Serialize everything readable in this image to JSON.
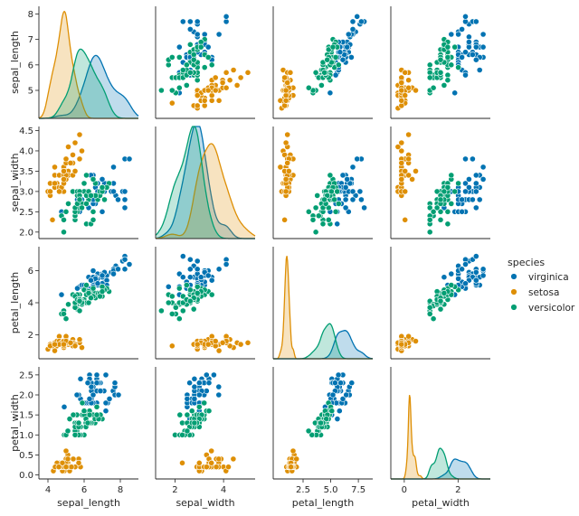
{
  "chart_data": {
    "type": "scatter",
    "subtype": "pairplot",
    "title": "",
    "variables": [
      "sepal_length",
      "sepal_width",
      "petal_length",
      "petal_width"
    ],
    "axis_limits": {
      "sepal_length": [
        3.9,
        8.3
      ],
      "sepal_width": [
        1.84,
        4.6
      ],
      "petal_length": [
        0.5,
        7.5
      ],
      "petal_width": [
        -0.1,
        2.7
      ]
    },
    "axis_ticks": {
      "sepal_length": [
        5,
        6,
        7,
        8
      ],
      "sepal_width": [
        2.0,
        2.5,
        3.0,
        3.5,
        4.0,
        4.5
      ],
      "petal_length": [
        2,
        4,
        6
      ],
      "petal_width": [
        0.0,
        0.5,
        1.0,
        1.5,
        2.0,
        2.5
      ]
    },
    "bottom_axis_ticks": {
      "sepal_length": [
        4,
        6,
        8
      ],
      "sepal_width": [
        2,
        4
      ],
      "petal_length": [
        2.5,
        5.0,
        7.5
      ],
      "petal_width": [
        0,
        2
      ]
    },
    "bottom_axis_limits": {
      "sepal_length": [
        3.5,
        9.0
      ],
      "sepal_width": [
        1.2,
        5.3
      ],
      "petal_length": [
        -0.2,
        8.8
      ],
      "petal_width": [
        -0.5,
        3.2
      ]
    },
    "tick_labels": {
      "sepal_length": [
        "5",
        "6",
        "7",
        "8"
      ],
      "sepal_width": [
        "2.0",
        "2.5",
        "3.0",
        "3.5",
        "4.0",
        "4.5"
      ],
      "petal_length": [
        "2",
        "4",
        "6"
      ],
      "petal_width": [
        "0.0",
        "0.5",
        "1.0",
        "1.5",
        "2.0",
        "2.5"
      ]
    },
    "bottom_tick_labels": {
      "sepal_length": [
        "4",
        "6",
        "8"
      ],
      "sepal_width": [
        "2",
        "4"
      ],
      "petal_length": [
        "2.5",
        "5.0",
        "7.5"
      ],
      "petal_width": [
        "0",
        "2"
      ]
    },
    "diag_density_max": [
      1.15,
      1.2,
      2.55,
      6.8
    ],
    "legend": {
      "title": "species",
      "placement": "center-right",
      "entries": [
        "virginica",
        "setosa",
        "versicolor"
      ]
    },
    "series": [
      {
        "name": "virginica",
        "color": "#0173b2",
        "points": [
          [
            6.3,
            3.3,
            6.0,
            2.5
          ],
          [
            5.8,
            2.7,
            5.1,
            1.9
          ],
          [
            7.1,
            3.0,
            5.9,
            2.1
          ],
          [
            6.3,
            2.9,
            5.6,
            1.8
          ],
          [
            6.5,
            3.0,
            5.8,
            2.2
          ],
          [
            7.6,
            3.0,
            6.6,
            2.1
          ],
          [
            4.9,
            2.5,
            4.5,
            1.7
          ],
          [
            7.3,
            2.9,
            6.3,
            1.8
          ],
          [
            6.7,
            2.5,
            5.8,
            1.8
          ],
          [
            7.2,
            3.6,
            6.1,
            2.5
          ],
          [
            6.5,
            3.2,
            5.1,
            2.0
          ],
          [
            6.4,
            2.7,
            5.3,
            1.9
          ],
          [
            6.8,
            3.0,
            5.5,
            2.1
          ],
          [
            5.7,
            2.5,
            5.0,
            2.0
          ],
          [
            5.8,
            2.8,
            5.1,
            2.4
          ],
          [
            6.4,
            3.2,
            5.3,
            2.3
          ],
          [
            6.5,
            3.0,
            5.5,
            1.8
          ],
          [
            7.7,
            3.8,
            6.7,
            2.2
          ],
          [
            7.7,
            2.6,
            6.9,
            2.3
          ],
          [
            6.0,
            2.2,
            5.0,
            1.5
          ],
          [
            6.9,
            3.2,
            5.7,
            2.3
          ],
          [
            5.6,
            2.8,
            4.9,
            2.0
          ],
          [
            7.7,
            2.8,
            6.7,
            2.0
          ],
          [
            6.3,
            2.7,
            4.9,
            1.8
          ],
          [
            6.7,
            3.3,
            5.7,
            2.1
          ],
          [
            7.2,
            3.2,
            6.0,
            1.8
          ],
          [
            6.2,
            2.8,
            4.8,
            1.8
          ],
          [
            6.1,
            3.0,
            4.9,
            1.8
          ],
          [
            6.4,
            2.8,
            5.6,
            2.1
          ],
          [
            7.2,
            3.0,
            5.8,
            1.6
          ],
          [
            7.4,
            2.8,
            6.1,
            1.9
          ],
          [
            7.9,
            3.8,
            6.4,
            2.0
          ],
          [
            6.4,
            2.8,
            5.6,
            2.2
          ],
          [
            6.3,
            2.8,
            5.1,
            1.5
          ],
          [
            6.1,
            2.6,
            5.6,
            1.4
          ],
          [
            7.7,
            3.0,
            6.1,
            2.3
          ],
          [
            6.3,
            3.4,
            5.6,
            2.4
          ],
          [
            6.4,
            3.1,
            5.5,
            1.8
          ],
          [
            6.0,
            3.0,
            4.8,
            1.8
          ],
          [
            6.9,
            3.1,
            5.4,
            2.1
          ],
          [
            6.7,
            3.1,
            5.6,
            2.4
          ],
          [
            6.9,
            3.1,
            5.1,
            2.3
          ],
          [
            6.8,
            3.2,
            5.9,
            2.3
          ],
          [
            6.7,
            3.3,
            5.7,
            2.5
          ],
          [
            6.7,
            3.0,
            5.2,
            2.3
          ],
          [
            6.3,
            2.5,
            5.0,
            1.9
          ],
          [
            6.5,
            3.0,
            5.2,
            2.0
          ],
          [
            6.2,
            3.4,
            5.4,
            2.3
          ],
          [
            5.9,
            3.0,
            5.1,
            1.8
          ]
        ]
      },
      {
        "name": "setosa",
        "color": "#de8f05",
        "points": [
          [
            5.1,
            3.5,
            1.4,
            0.2
          ],
          [
            4.9,
            3.0,
            1.4,
            0.2
          ],
          [
            4.7,
            3.2,
            1.3,
            0.2
          ],
          [
            4.6,
            3.1,
            1.5,
            0.2
          ],
          [
            5.0,
            3.6,
            1.4,
            0.2
          ],
          [
            5.4,
            3.9,
            1.7,
            0.4
          ],
          [
            4.6,
            3.4,
            1.4,
            0.3
          ],
          [
            5.0,
            3.4,
            1.5,
            0.2
          ],
          [
            4.4,
            2.9,
            1.4,
            0.2
          ],
          [
            4.9,
            3.1,
            1.5,
            0.1
          ],
          [
            5.4,
            3.7,
            1.5,
            0.2
          ],
          [
            4.8,
            3.4,
            1.6,
            0.2
          ],
          [
            4.8,
            3.0,
            1.4,
            0.1
          ],
          [
            4.3,
            3.0,
            1.1,
            0.1
          ],
          [
            5.8,
            4.0,
            1.2,
            0.2
          ],
          [
            5.7,
            4.4,
            1.5,
            0.4
          ],
          [
            5.4,
            3.9,
            1.3,
            0.4
          ],
          [
            5.1,
            3.5,
            1.4,
            0.3
          ],
          [
            5.7,
            3.8,
            1.7,
            0.3
          ],
          [
            5.1,
            3.8,
            1.5,
            0.3
          ],
          [
            5.4,
            3.4,
            1.7,
            0.2
          ],
          [
            5.1,
            3.7,
            1.5,
            0.4
          ],
          [
            4.6,
            3.6,
            1.0,
            0.2
          ],
          [
            5.1,
            3.3,
            1.7,
            0.5
          ],
          [
            4.8,
            3.4,
            1.9,
            0.2
          ],
          [
            5.0,
            3.0,
            1.6,
            0.2
          ],
          [
            5.0,
            3.4,
            1.6,
            0.4
          ],
          [
            5.2,
            3.5,
            1.5,
            0.2
          ],
          [
            5.2,
            3.4,
            1.4,
            0.2
          ],
          [
            4.7,
            3.2,
            1.6,
            0.2
          ],
          [
            4.8,
            3.1,
            1.6,
            0.2
          ],
          [
            5.4,
            3.4,
            1.5,
            0.4
          ],
          [
            5.2,
            4.1,
            1.5,
            0.1
          ],
          [
            5.5,
            4.2,
            1.4,
            0.2
          ],
          [
            4.9,
            3.1,
            1.5,
            0.2
          ],
          [
            5.0,
            3.2,
            1.2,
            0.2
          ],
          [
            5.5,
            3.5,
            1.3,
            0.2
          ],
          [
            4.4,
            3.0,
            1.3,
            0.2
          ],
          [
            5.1,
            3.4,
            1.5,
            0.2
          ],
          [
            5.0,
            3.5,
            1.3,
            0.3
          ],
          [
            4.5,
            2.3,
            1.3,
            0.3
          ],
          [
            4.4,
            3.2,
            1.3,
            0.2
          ],
          [
            5.0,
            3.5,
            1.6,
            0.6
          ],
          [
            5.1,
            3.8,
            1.9,
            0.4
          ],
          [
            4.8,
            3.0,
            1.4,
            0.3
          ],
          [
            5.1,
            3.8,
            1.6,
            0.2
          ],
          [
            4.6,
            3.2,
            1.4,
            0.2
          ],
          [
            5.3,
            3.7,
            1.5,
            0.2
          ],
          [
            5.0,
            3.3,
            1.4,
            0.2
          ]
        ]
      },
      {
        "name": "versicolor",
        "color": "#029e73",
        "points": [
          [
            7.0,
            3.2,
            4.7,
            1.4
          ],
          [
            6.4,
            3.2,
            4.5,
            1.5
          ],
          [
            6.9,
            3.1,
            4.9,
            1.5
          ],
          [
            5.5,
            2.3,
            4.0,
            1.3
          ],
          [
            6.5,
            2.8,
            4.6,
            1.5
          ],
          [
            5.7,
            2.8,
            4.5,
            1.3
          ],
          [
            6.3,
            3.3,
            4.7,
            1.6
          ],
          [
            4.9,
            2.4,
            3.3,
            1.0
          ],
          [
            6.6,
            2.9,
            4.6,
            1.3
          ],
          [
            5.2,
            2.7,
            3.9,
            1.4
          ],
          [
            5.0,
            2.0,
            3.5,
            1.0
          ],
          [
            5.9,
            3.0,
            4.2,
            1.5
          ],
          [
            6.0,
            2.2,
            4.0,
            1.0
          ],
          [
            6.1,
            2.9,
            4.7,
            1.4
          ],
          [
            5.6,
            2.9,
            3.6,
            1.3
          ],
          [
            6.7,
            3.1,
            4.4,
            1.4
          ],
          [
            5.6,
            3.0,
            4.5,
            1.5
          ],
          [
            5.8,
            2.7,
            4.1,
            1.0
          ],
          [
            6.2,
            2.2,
            4.5,
            1.5
          ],
          [
            5.6,
            2.5,
            3.9,
            1.1
          ],
          [
            5.9,
            3.2,
            4.8,
            1.8
          ],
          [
            6.1,
            2.8,
            4.0,
            1.3
          ],
          [
            6.3,
            2.5,
            4.9,
            1.5
          ],
          [
            6.1,
            2.8,
            4.7,
            1.2
          ],
          [
            6.4,
            2.9,
            4.3,
            1.3
          ],
          [
            6.6,
            3.0,
            4.4,
            1.4
          ],
          [
            6.8,
            2.8,
            4.8,
            1.4
          ],
          [
            6.7,
            3.0,
            5.0,
            1.7
          ],
          [
            6.0,
            2.9,
            4.5,
            1.5
          ],
          [
            5.7,
            2.6,
            3.5,
            1.0
          ],
          [
            5.5,
            2.4,
            3.8,
            1.1
          ],
          [
            5.5,
            2.4,
            3.7,
            1.0
          ],
          [
            5.8,
            2.7,
            3.9,
            1.2
          ],
          [
            6.0,
            2.7,
            5.1,
            1.6
          ],
          [
            5.4,
            3.0,
            4.5,
            1.5
          ],
          [
            6.0,
            3.4,
            4.5,
            1.6
          ],
          [
            6.7,
            3.1,
            4.7,
            1.5
          ],
          [
            6.3,
            2.3,
            4.4,
            1.3
          ],
          [
            5.6,
            3.0,
            4.1,
            1.3
          ],
          [
            5.5,
            2.5,
            4.0,
            1.3
          ],
          [
            5.5,
            2.6,
            4.4,
            1.2
          ],
          [
            6.1,
            3.0,
            4.6,
            1.4
          ],
          [
            5.8,
            2.6,
            4.0,
            1.2
          ],
          [
            5.0,
            2.3,
            3.3,
            1.0
          ],
          [
            5.6,
            2.7,
            4.2,
            1.3
          ],
          [
            5.7,
            3.0,
            4.2,
            1.2
          ],
          [
            5.7,
            2.9,
            4.2,
            1.3
          ],
          [
            6.2,
            2.9,
            4.3,
            1.3
          ],
          [
            5.1,
            2.5,
            3.0,
            1.1
          ],
          [
            5.7,
            2.8,
            4.1,
            1.3
          ]
        ]
      }
    ]
  }
}
